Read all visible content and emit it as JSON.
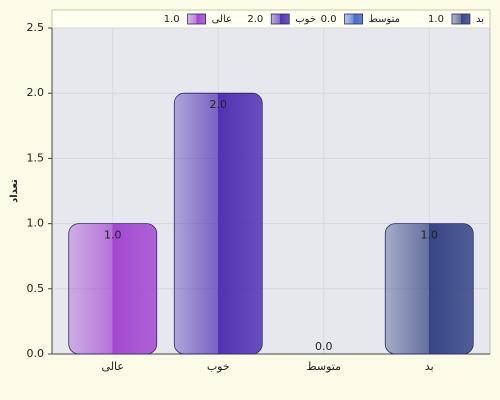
{
  "chart_data": {
    "type": "bar",
    "y_label": "تعداد",
    "categories": [
      "عالی",
      "خوب",
      "متوسط",
      "بد"
    ],
    "values": [
      1,
      2,
      0,
      1
    ],
    "value_labels": [
      "1.0",
      "2.0",
      "0.0",
      "1.0"
    ],
    "colors": [
      "#a040d0",
      "#4a28b0",
      "#3c64c8",
      "#2c3c80"
    ],
    "ylim": [
      0,
      2.5
    ],
    "yticks": [
      {
        "value": 0,
        "label": "0.0"
      },
      0.5,
      {
        "value": 1,
        "label": "1.0"
      },
      1.5,
      {
        "value": 2,
        "label": "2.0"
      },
      2.5
    ],
    "grid": true
  }
}
